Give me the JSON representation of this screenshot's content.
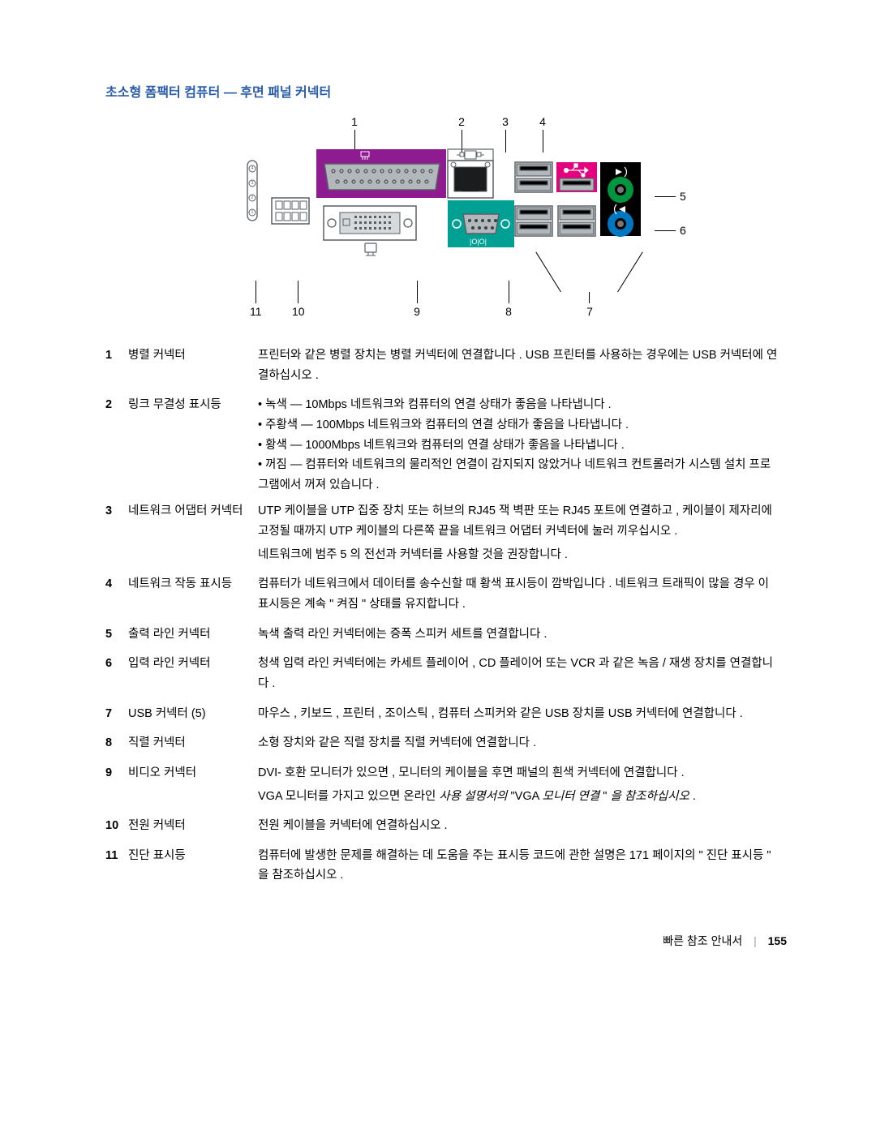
{
  "heading": "초소형 폼팩터 컴퓨터 — 후면 패널 커넥터",
  "diagram": {
    "top_labels": [
      "1",
      "2",
      "3",
      "4"
    ],
    "right_labels": [
      "5",
      "6"
    ],
    "bottom_labels": [
      "7",
      "8",
      "9",
      "10",
      "11"
    ],
    "colors": {
      "purple_block": "#8e1b8f",
      "teal_block": "#00a194",
      "magenta_block": "#e5007f",
      "green_circle": "#009640",
      "blue_circle": "#0077c0",
      "connector_gray": "#b2b7bc",
      "usb_black": "#000000",
      "panel_border": "#5a5f64"
    }
  },
  "rows": [
    {
      "num": "1",
      "name": "병렬 커넥터",
      "desc_paragraphs": [
        "프린터와 같은 병렬 장치는 병렬 커넥터에 연결합니다 . USB 프린터를 사용하는 경우에는 USB 커넥터에 연결하십시오 ."
      ]
    },
    {
      "num": "2",
      "name": "링크 무결성 표시등",
      "desc_bullets": [
        "녹색 — 10Mbps 네트워크와 컴퓨터의 연결 상태가 좋음을 나타냅니다 .",
        "주황색 — 100Mbps 네트워크와 컴퓨터의 연결 상태가 좋음을 나타냅니다 .",
        "황색 — 1000Mbps 네트워크와 컴퓨터의 연결 상태가 좋음을 나타냅니다 .",
        "꺼짐 — 컴퓨터와 네트워크의 물리적인 연결이 감지되지 않았거나 네트워크 컨트롤러가 시스템 설치 프로그램에서 꺼져 있습니다 ."
      ]
    },
    {
      "num": "3",
      "name": "네트워크 어댑터 커넥터",
      "desc_paragraphs": [
        "UTP 케이블을 UTP 집중 장치 또는 허브의 RJ45 잭 벽판 또는 RJ45 포트에 연결하고 , 케이블이 제자리에 고정될 때까지 UTP 케이블의 다른쪽 끝을 네트워크 어댑터 커넥터에 눌러 끼우십시오 .",
        "네트워크에 범주 5 의 전선과 커넥터를 사용할 것을 권장합니다 ."
      ]
    },
    {
      "num": "4",
      "name": "네트워크 작동 표시등",
      "desc_paragraphs": [
        "컴퓨터가 네트워크에서 데이터를 송수신할 때 황색 표시등이 깜박입니다 . 네트워크 트래픽이 많을 경우 이 표시등은 계속 \" 켜짐 \" 상태를 유지합니다 ."
      ]
    },
    {
      "num": "5",
      "name": "출력 라인 커넥터",
      "desc_paragraphs": [
        "녹색 출력 라인 커넥터에는 증폭 스피커 세트를 연결합니다 ."
      ]
    },
    {
      "num": "6",
      "name": "입력 라인 커넥터",
      "desc_paragraphs": [
        "청색 입력 라인 커넥터에는 카세트 플레이어 , CD 플레이어 또는 VCR 과 같은 녹음 / 재생 장치를 연결합니다 ."
      ]
    },
    {
      "num": "7",
      "name": "USB 커넥터 (5)",
      "desc_paragraphs": [
        "마우스 , 키보드 , 프린터 , 조이스틱 , 컴퓨터 스피커와 같은 USB 장치를 USB 커넥터에 연결합니다 ."
      ]
    },
    {
      "num": "8",
      "name": "직렬 커넥터",
      "desc_paragraphs": [
        "소형 장치와 같은 직렬 장치를 직렬 커넥터에 연결합니다 ."
      ]
    },
    {
      "num": "9",
      "name": "비디오 커넥터",
      "desc_paragraphs": [
        "DVI- 호환 모니터가 있으면 , 모니터의 케이블을 후면 패널의 흰색 커넥터에 연결합니다 ."
      ],
      "desc_italic": "VGA 모니터를 가지고 있으면 온라인 사용 설명서의 \"VGA 모니터 연결 \" 을 참조하십시오 ."
    },
    {
      "num": "10",
      "name": "전원 커넥터",
      "desc_paragraphs": [
        "전원 케이블을 커넥터에 연결하십시오 ."
      ]
    },
    {
      "num": "11",
      "name": "진단 표시등",
      "desc_paragraphs": [
        "컴퓨터에 발생한 문제를 해결하는 데 도움을 주는 표시등 코드에 관한 설명은 171 페이지의 \" 진단 표시등 \" 을 참조하십시오 ."
      ]
    }
  ],
  "footer": {
    "text": "빠른 참조 안내서",
    "page": "155"
  }
}
